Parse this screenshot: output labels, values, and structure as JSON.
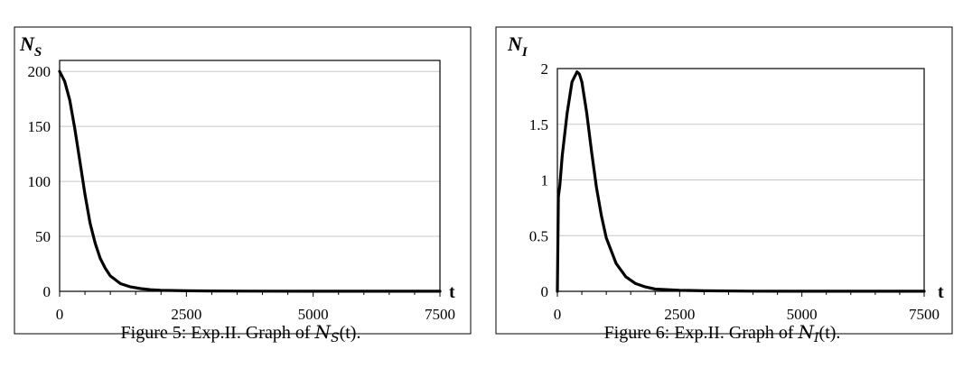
{
  "chart_data": [
    {
      "type": "line",
      "ylabel_main": "N",
      "ylabel_sub": "S",
      "xlabel": "t",
      "xlim": [
        0,
        7500
      ],
      "ylim": [
        0,
        210
      ],
      "x_ticks": [
        0,
        2500,
        5000,
        7500
      ],
      "y_ticks": [
        0,
        50,
        100,
        150,
        200
      ],
      "x_tick_labels": [
        "0",
        "2500",
        "5000",
        "7500"
      ],
      "y_tick_labels": [
        "0",
        "50",
        "100",
        "150",
        "200"
      ],
      "grid": true,
      "legend": "none",
      "series": [
        {
          "x": [
            0,
            100,
            200,
            300,
            400,
            500,
            600,
            700,
            800,
            900,
            1000,
            1200,
            1400,
            1600,
            1800,
            2000,
            2500,
            3000,
            4000,
            5000,
            6000,
            7500
          ],
          "values": [
            200,
            191,
            174,
            148,
            118,
            88,
            62,
            44,
            30,
            21,
            14,
            7,
            4,
            2.5,
            1.5,
            1,
            0.5,
            0.3,
            0.2,
            0.1,
            0.1,
            0.1
          ]
        }
      ],
      "caption": {
        "prefix": "Figure 5: Exp.II. Graph of ",
        "var": "N",
        "sub": "S",
        "suffix": "(t)."
      }
    },
    {
      "type": "line",
      "ylabel_main": "N",
      "ylabel_sub": "I",
      "xlabel": "t",
      "xlim": [
        0,
        7500
      ],
      "ylim": [
        0,
        2
      ],
      "x_ticks": [
        0,
        2500,
        5000,
        7500
      ],
      "y_ticks": [
        0,
        0.5,
        1,
        1.5,
        2
      ],
      "x_tick_labels": [
        "0",
        "2500",
        "5000",
        "7500"
      ],
      "y_tick_labels": [
        "0",
        "0.5",
        "1",
        "1.5",
        "2"
      ],
      "grid": true,
      "legend": "none",
      "series": [
        {
          "x": [
            0,
            20,
            50,
            100,
            200,
            300,
            400,
            450,
            500,
            600,
            700,
            800,
            900,
            1000,
            1200,
            1400,
            1600,
            1800,
            2000,
            2500,
            3000,
            4000,
            5000,
            6000,
            7500
          ],
          "values": [
            0,
            0.85,
            0.95,
            1.22,
            1.6,
            1.88,
            1.97,
            1.95,
            1.88,
            1.6,
            1.25,
            0.93,
            0.68,
            0.48,
            0.25,
            0.13,
            0.07,
            0.04,
            0.02,
            0.01,
            0.005,
            0.002,
            0.001,
            0.001,
            0.001
          ]
        }
      ],
      "caption": {
        "prefix": "Figure 6: Exp.II. Graph of ",
        "var": "N",
        "sub": "I",
        "suffix": "(t)."
      }
    }
  ]
}
